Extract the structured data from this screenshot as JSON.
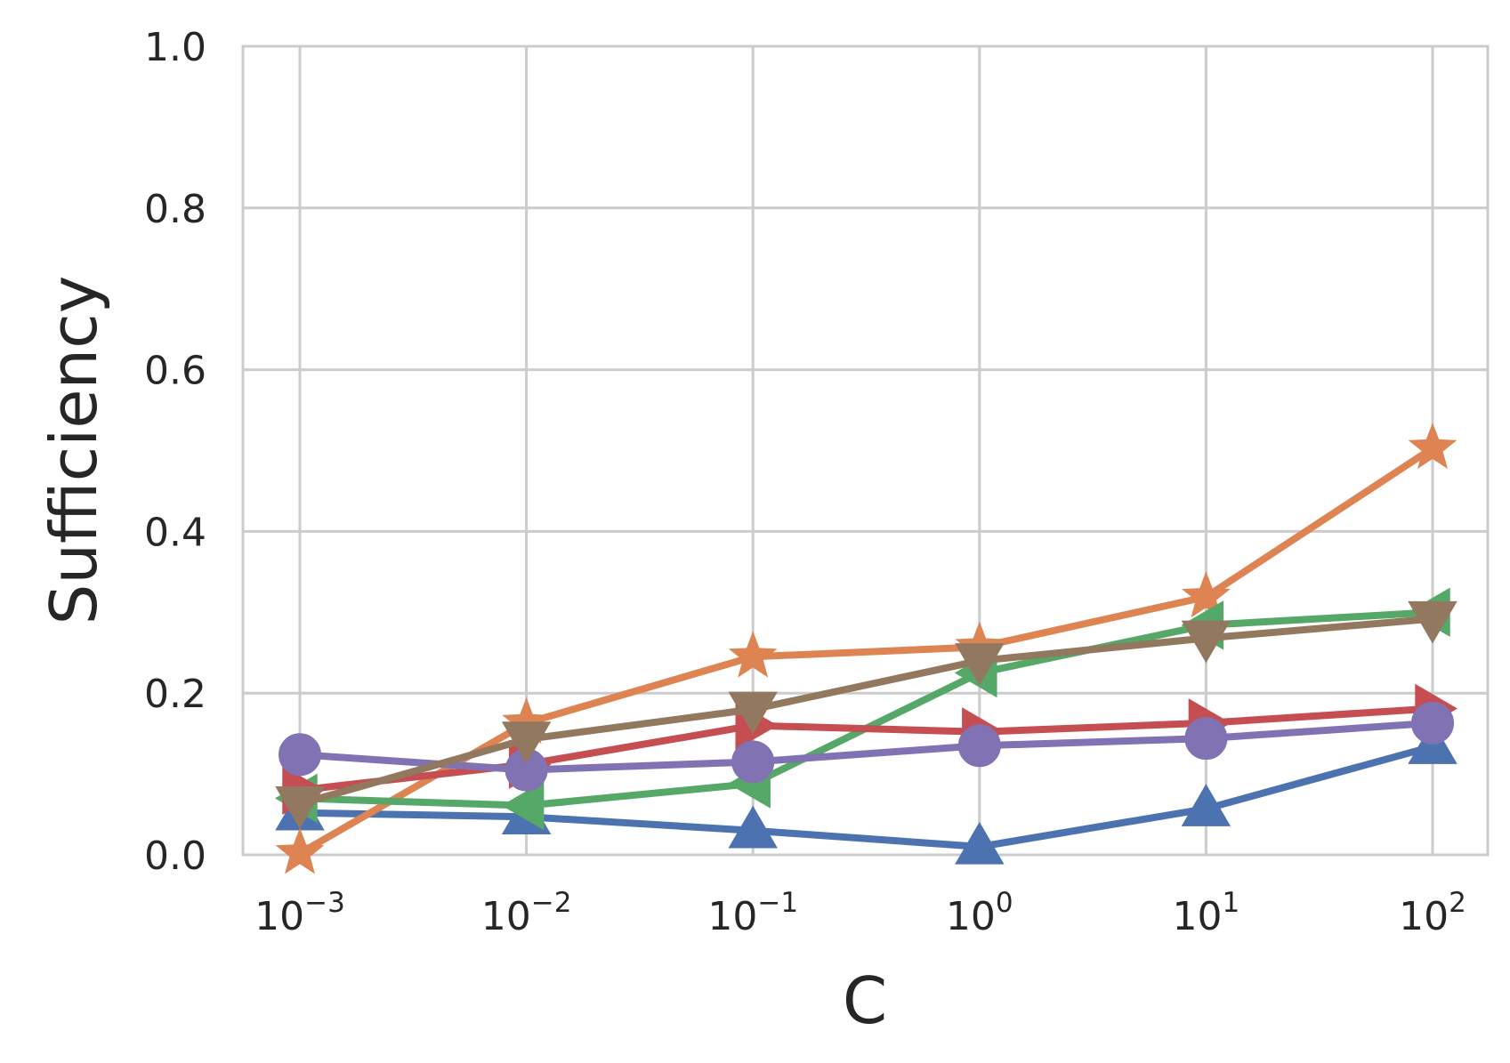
{
  "chart_data": {
    "type": "line",
    "title": "",
    "xlabel": "C",
    "ylabel": "Sufficiency",
    "x_scale": "log",
    "x": [
      0.001,
      0.01,
      0.1,
      1,
      10,
      100
    ],
    "x_tick_labels": [
      {
        "base": "10",
        "exp": "−3"
      },
      {
        "base": "10",
        "exp": "−2"
      },
      {
        "base": "10",
        "exp": "−1"
      },
      {
        "base": "10",
        "exp": "0"
      },
      {
        "base": "10",
        "exp": "1"
      },
      {
        "base": "10",
        "exp": "2"
      }
    ],
    "ylim": [
      0,
      1
    ],
    "y_ticks": [
      0.0,
      0.2,
      0.4,
      0.6,
      0.8,
      1.0
    ],
    "y_tick_labels": [
      "0.0",
      "0.2",
      "0.4",
      "0.6",
      "0.8",
      "1.0"
    ],
    "grid": true,
    "legend": "none",
    "series": [
      {
        "color": "#4C72B0",
        "marker": "triangle-up",
        "values": [
          0.052,
          0.047,
          0.03,
          0.01,
          0.057,
          0.134
        ]
      },
      {
        "color": "#DD8452",
        "marker": "star",
        "values": [
          0.002,
          0.163,
          0.245,
          0.257,
          0.319,
          0.503
        ]
      },
      {
        "color": "#55A868",
        "marker": "triangle-left",
        "values": [
          0.07,
          0.061,
          0.088,
          0.225,
          0.284,
          0.3
        ]
      },
      {
        "color": "#C44E52",
        "marker": "triangle-right",
        "values": [
          0.08,
          0.112,
          0.16,
          0.152,
          0.163,
          0.181
        ]
      },
      {
        "color": "#8172B3",
        "marker": "circle",
        "values": [
          0.124,
          0.105,
          0.115,
          0.135,
          0.144,
          0.163
        ]
      },
      {
        "color": "#937860",
        "marker": "triangle-down",
        "values": [
          0.063,
          0.143,
          0.18,
          0.24,
          0.268,
          0.292
        ]
      }
    ]
  }
}
